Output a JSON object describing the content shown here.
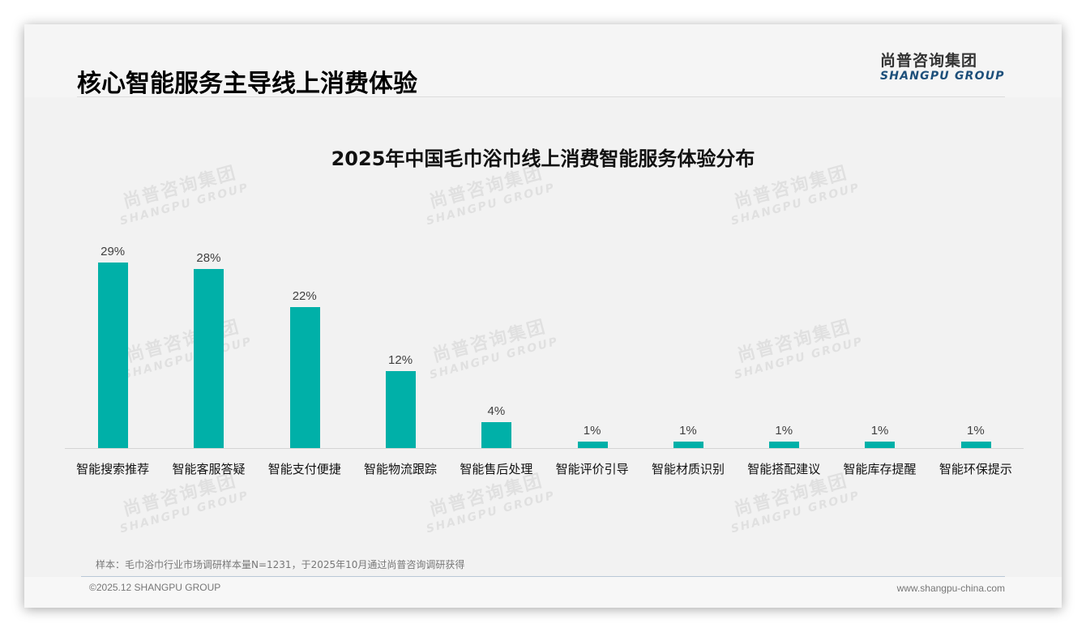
{
  "header": {
    "title": "核心智能服务主导线上消费体验",
    "logo_cn": "尚普咨询集团",
    "logo_en": "SHANGPU GROUP"
  },
  "watermark": {
    "cn": "尚普咨询集团",
    "en": "SHANGPU GROUP"
  },
  "colors": {
    "bar": "#00b0a8",
    "logo_en": "#1d4f7a"
  },
  "chart_data": {
    "type": "bar",
    "title": "2025年中国毛巾浴巾线上消费智能服务体验分布",
    "categories": [
      "智能搜索推荐",
      "智能客服答疑",
      "智能支付便捷",
      "智能物流跟踪",
      "智能售后处理",
      "智能评价引导",
      "智能材质识别",
      "智能搭配建议",
      "智能库存提醒",
      "智能环保提示"
    ],
    "values": [
      29,
      28,
      22,
      12,
      4,
      1,
      1,
      1,
      1,
      1
    ],
    "value_labels": [
      "29%",
      "28%",
      "22%",
      "12%",
      "4%",
      "1%",
      "1%",
      "1%",
      "1%",
      "1%"
    ],
    "unit": "%",
    "xlabel": "",
    "ylabel": "",
    "ylim": [
      0,
      30
    ],
    "grid": false,
    "legend": null
  },
  "footer": {
    "note": "样本：毛巾浴巾行业市场调研样本量N=1231，于2025年10月通过尚普咨询调研获得",
    "copyright": "©2025.12 SHANGPU GROUP",
    "website": "www.shangpu-china.com"
  }
}
